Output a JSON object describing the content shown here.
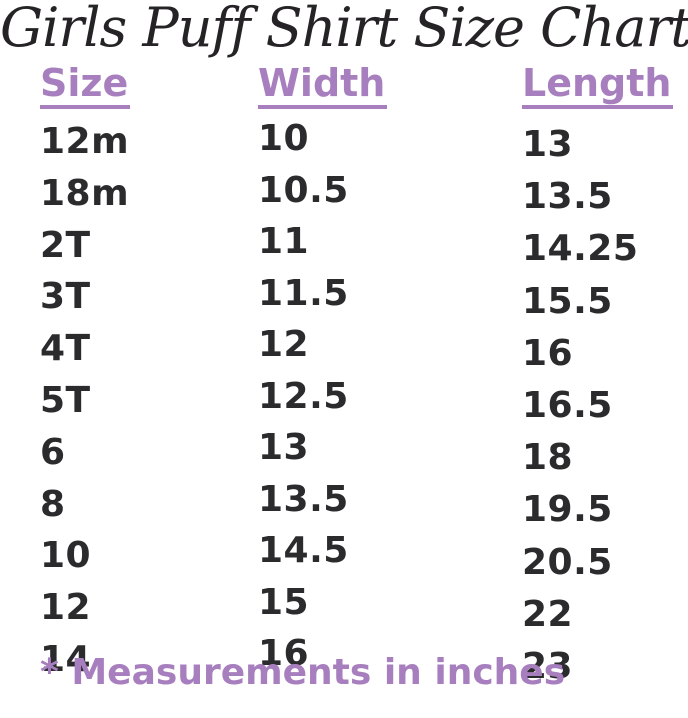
{
  "title": "Girls Puff Shirt Size Chart",
  "footnote": "* Measurements in inches",
  "colors": {
    "accent": "#a87fbe",
    "body_text": "#2b2a2c",
    "background": "#ffffff"
  },
  "chart_data": {
    "type": "table",
    "title": "Girls Puff Shirt Size Chart",
    "columns": [
      "Size",
      "Width",
      "Length"
    ],
    "rows": [
      [
        "12m",
        "10",
        "13"
      ],
      [
        "18m",
        "10.5",
        "13.5"
      ],
      [
        "2T",
        "11",
        "14.25"
      ],
      [
        "3T",
        "11.5",
        "15.5"
      ],
      [
        "4T",
        "12",
        "16"
      ],
      [
        "5T",
        "12.5",
        "16.5"
      ],
      [
        "6",
        "13",
        "18"
      ],
      [
        "8",
        "13.5",
        "19.5"
      ],
      [
        "10",
        "14.5",
        "20.5"
      ],
      [
        "12",
        "15",
        "22"
      ],
      [
        "14",
        "16",
        "23"
      ]
    ],
    "units": "inches",
    "footnote": "* Measurements in inches"
  }
}
